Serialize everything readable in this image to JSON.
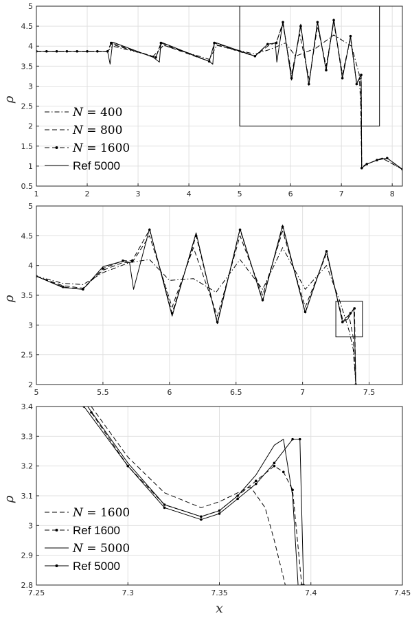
{
  "chart_data": [
    {
      "type": "line",
      "title": "",
      "xlabel": "",
      "ylabel": "ρ",
      "xlim": [
        1,
        8.2
      ],
      "ylim": [
        0.5,
        5
      ],
      "xticks": [
        "1",
        "2",
        "3",
        "4",
        "5",
        "6",
        "7",
        "8"
      ],
      "yticks": [
        "0.5",
        "1",
        "1.5",
        "2",
        "2.5",
        "3",
        "3.5",
        "4",
        "4.5",
        "5"
      ],
      "grid": true,
      "legend_position": "lower-left",
      "legend": [
        {
          "prefix": "N = ",
          "value": "400",
          "style": "dashdot"
        },
        {
          "prefix": "N = ",
          "value": "800",
          "style": "dashed"
        },
        {
          "prefix": "N = ",
          "value": "1600",
          "style": "dashed-dot-marker"
        },
        {
          "prefix": "",
          "value": "Ref 5000",
          "style": "solid"
        }
      ],
      "zoom_box": {
        "x": [
          5,
          7.75
        ],
        "y": [
          2,
          5
        ]
      },
      "series": [
        {
          "style": "dashdot",
          "x": [
            1,
            2.4,
            2.5,
            3.3,
            3.5,
            4.4,
            4.55,
            5.3,
            5.6,
            5.9,
            6.1,
            6.5,
            6.85,
            7.2,
            7.35,
            7.38,
            7.4,
            7.45,
            7.6,
            7.8,
            8.2
          ],
          "y": [
            3.87,
            3.87,
            4.0,
            3.75,
            4.02,
            3.67,
            4.02,
            3.8,
            3.92,
            4.08,
            3.75,
            3.95,
            4.28,
            4.0,
            3.3,
            2.5,
            0.95,
            1.02,
            1.1,
            1.2,
            0.92
          ]
        },
        {
          "style": "dashed",
          "x": [
            1,
            2.4,
            2.47,
            3.35,
            3.45,
            4.4,
            4.5,
            5.3,
            5.55,
            5.72,
            5.85,
            6.02,
            6.18,
            6.37,
            6.53,
            6.7,
            6.85,
            7.02,
            7.18,
            7.3,
            7.38,
            7.4,
            7.45,
            7.6,
            7.8,
            8.2
          ],
          "y": [
            3.87,
            3.87,
            4.05,
            3.72,
            4.05,
            3.62,
            4.05,
            3.75,
            4.0,
            4.1,
            4.55,
            3.3,
            4.3,
            3.15,
            4.5,
            3.5,
            4.6,
            3.3,
            4.2,
            3.1,
            3.2,
            0.95,
            1.02,
            1.1,
            1.2,
            0.92
          ]
        },
        {
          "style": "dashed-dot-marker",
          "x": [
            1,
            1.2,
            1.4,
            1.6,
            1.8,
            2.0,
            2.2,
            2.4,
            2.47,
            3.35,
            3.45,
            4.4,
            4.5,
            5.3,
            5.55,
            5.72,
            5.85,
            6.02,
            6.2,
            6.36,
            6.53,
            6.7,
            6.85,
            7.02,
            7.18,
            7.3,
            7.39,
            7.4,
            7.5,
            7.7,
            7.9,
            8.2
          ],
          "y": [
            3.87,
            3.87,
            3.87,
            3.87,
            3.87,
            3.87,
            3.87,
            3.87,
            4.08,
            3.72,
            4.08,
            3.62,
            4.08,
            3.75,
            4.05,
            4.08,
            4.6,
            3.2,
            4.5,
            3.05,
            4.6,
            3.4,
            4.65,
            3.2,
            4.25,
            3.05,
            3.28,
            0.95,
            1.05,
            1.15,
            1.2,
            0.92
          ]
        },
        {
          "style": "solid",
          "x": [
            1,
            2.4,
            2.45,
            2.5,
            3.3,
            3.42,
            3.45,
            4.4,
            4.47,
            4.5,
            5.3,
            5.55,
            5.7,
            5.73,
            5.85,
            6.02,
            6.2,
            6.36,
            6.53,
            6.7,
            6.85,
            7.02,
            7.18,
            7.3,
            7.38,
            7.39,
            7.4,
            7.5,
            7.7,
            7.9,
            8.2
          ],
          "y": [
            3.87,
            3.87,
            3.55,
            4.1,
            3.72,
            3.6,
            4.1,
            3.62,
            3.55,
            4.1,
            3.75,
            4.05,
            4.08,
            3.6,
            4.62,
            3.15,
            4.55,
            3.02,
            4.62,
            3.4,
            4.68,
            3.2,
            4.25,
            3.05,
            3.28,
            3.1,
            0.95,
            1.05,
            1.15,
            1.2,
            0.92
          ]
        }
      ]
    },
    {
      "type": "line",
      "title": "",
      "xlabel": "",
      "ylabel": "ρ",
      "xlim": [
        5,
        7.75
      ],
      "ylim": [
        2,
        5
      ],
      "xticks": [
        "5",
        "5.5",
        "6",
        "6.5",
        "7",
        "7.5"
      ],
      "yticks": [
        "2",
        "2.5",
        "3",
        "3.5",
        "4",
        "4.5",
        "5"
      ],
      "grid": true,
      "zoom_box": {
        "x": [
          7.25,
          7.45
        ],
        "y": [
          2.8,
          3.4
        ]
      },
      "series": [
        {
          "style": "dashdot",
          "x": [
            5,
            5.2,
            5.35,
            5.5,
            5.7,
            5.85,
            6.0,
            6.18,
            6.35,
            6.53,
            6.7,
            6.85,
            7.02,
            7.18,
            7.28,
            7.35,
            7.38,
            7.4
          ],
          "y": [
            3.82,
            3.7,
            3.68,
            3.88,
            4.05,
            4.1,
            3.75,
            3.78,
            3.55,
            4.1,
            3.6,
            4.3,
            3.6,
            4.0,
            3.4,
            2.9,
            2.6,
            2.0
          ]
        },
        {
          "style": "dashed",
          "x": [
            5,
            5.2,
            5.35,
            5.5,
            5.65,
            5.72,
            5.85,
            6.02,
            6.18,
            6.36,
            6.53,
            6.7,
            6.85,
            7.02,
            7.18,
            7.3,
            7.35,
            7.38,
            7.4
          ],
          "y": [
            3.82,
            3.66,
            3.62,
            3.92,
            4.05,
            4.05,
            4.5,
            3.3,
            4.3,
            3.15,
            4.5,
            3.5,
            4.58,
            3.3,
            4.2,
            3.1,
            3.15,
            2.8,
            2.0
          ]
        },
        {
          "style": "dashed-dot-marker",
          "x": [
            5,
            5.2,
            5.35,
            5.5,
            5.65,
            5.72,
            5.85,
            6.02,
            6.2,
            6.36,
            6.53,
            6.7,
            6.85,
            7.02,
            7.18,
            7.3,
            7.36,
            7.39,
            7.4
          ],
          "y": [
            3.82,
            3.64,
            3.6,
            3.95,
            4.08,
            4.08,
            4.6,
            3.2,
            4.5,
            3.05,
            4.6,
            3.42,
            4.65,
            3.22,
            4.24,
            3.05,
            3.2,
            3.28,
            2.0
          ]
        },
        {
          "style": "solid",
          "x": [
            5,
            5.2,
            5.35,
            5.5,
            5.66,
            5.7,
            5.73,
            5.85,
            6.02,
            6.2,
            6.36,
            6.53,
            6.7,
            6.85,
            7.02,
            7.18,
            7.3,
            7.34,
            7.385,
            7.39,
            7.4
          ],
          "y": [
            3.82,
            3.63,
            3.6,
            3.98,
            4.08,
            4.05,
            3.6,
            4.62,
            3.15,
            4.55,
            3.02,
            4.62,
            3.4,
            4.68,
            3.2,
            4.25,
            3.05,
            3.1,
            3.28,
            3.0,
            2.0
          ]
        }
      ]
    },
    {
      "type": "line",
      "title": "",
      "xlabel": "x",
      "ylabel": "ρ",
      "xlim": [
        7.25,
        7.45
      ],
      "ylim": [
        2.8,
        3.4
      ],
      "xticks": [
        "7.25",
        "7.3",
        "7.35",
        "7.4",
        "7.45"
      ],
      "yticks": [
        "2.8",
        "2.9",
        "3",
        "3.1",
        "3.2",
        "3.3",
        "3.4"
      ],
      "grid": true,
      "legend_position": "lower-left",
      "legend": [
        {
          "prefix": "N = ",
          "value": "1600",
          "style": "dashed"
        },
        {
          "prefix": "",
          "value": "Ref 1600",
          "style": "dashed-dot-marker"
        },
        {
          "prefix": "N = ",
          "value": "5000",
          "style": "solid"
        },
        {
          "prefix": "",
          "value": "Ref 5000",
          "style": "solid-dot-marker"
        }
      ],
      "series": [
        {
          "style": "dashed",
          "x": [
            7.28,
            7.3,
            7.32,
            7.34,
            7.35,
            7.36,
            7.367,
            7.375,
            7.38,
            7.386
          ],
          "y": [
            3.4,
            3.23,
            3.11,
            3.06,
            3.08,
            3.11,
            3.13,
            3.06,
            2.95,
            2.8
          ]
        },
        {
          "style": "dashed-dot-marker",
          "x": [
            7.28,
            7.3,
            7.32,
            7.34,
            7.35,
            7.36,
            7.37,
            7.38,
            7.385,
            7.39,
            7.395
          ],
          "y": [
            3.38,
            3.2,
            3.07,
            3.03,
            3.05,
            3.1,
            3.15,
            3.2,
            3.18,
            3.12,
            2.8
          ]
        },
        {
          "style": "solid",
          "x": [
            7.278,
            7.3,
            7.32,
            7.34,
            7.35,
            7.36,
            7.37,
            7.38,
            7.385,
            7.39,
            7.393
          ],
          "y": [
            3.4,
            3.21,
            3.07,
            3.03,
            3.05,
            3.1,
            3.17,
            3.27,
            3.29,
            3.1,
            2.8
          ]
        },
        {
          "style": "solid-dot-marker",
          "x": [
            7.276,
            7.3,
            7.32,
            7.34,
            7.35,
            7.36,
            7.37,
            7.38,
            7.39,
            7.394,
            7.396
          ],
          "y": [
            3.4,
            3.2,
            3.06,
            3.02,
            3.04,
            3.09,
            3.14,
            3.21,
            3.29,
            3.29,
            2.8
          ]
        }
      ]
    }
  ]
}
